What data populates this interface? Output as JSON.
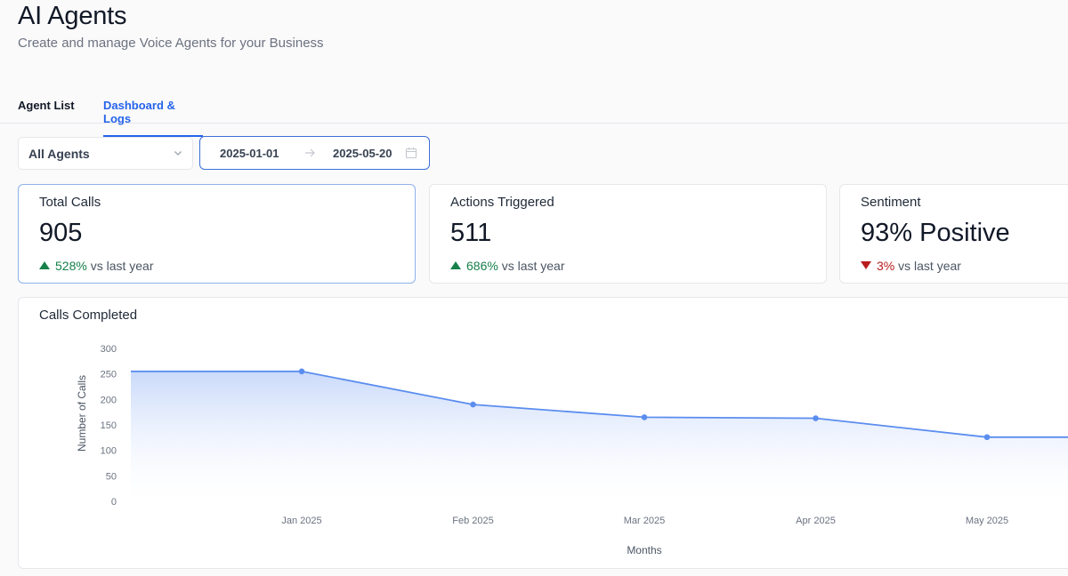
{
  "header": {
    "title": "AI Agents",
    "subtitle": "Create and manage Voice Agents for your Business"
  },
  "tabs": [
    {
      "label": "Agent List",
      "active": false
    },
    {
      "label": "Dashboard & Logs",
      "active": true
    }
  ],
  "filters": {
    "agent_select": "All Agents",
    "date_start": "2025-01-01",
    "date_end": "2025-05-20"
  },
  "cards": [
    {
      "title": "Total Calls",
      "value": "905",
      "pct": "528%",
      "suffix": "vs last year",
      "direction": "up"
    },
    {
      "title": "Actions Triggered",
      "value": "511",
      "pct": "686%",
      "suffix": "vs last year",
      "direction": "up"
    },
    {
      "title": "Sentiment",
      "value": "93% Positive",
      "pct": "3%",
      "suffix": "vs last year",
      "direction": "down"
    }
  ],
  "colors": {
    "accent": "#2563eb",
    "positive": "#16804a",
    "negative": "#b91c1c",
    "line": "#5b8def"
  },
  "chart_data": {
    "type": "area",
    "title": "Calls Completed",
    "xlabel": "Months",
    "ylabel": "Number of Calls",
    "categories": [
      "Jan 2025",
      "Feb 2025",
      "Mar 2025",
      "Apr 2025",
      "May 2025"
    ],
    "series": [
      {
        "values": [
          255,
          190,
          165,
          163,
          126
        ]
      }
    ],
    "ylim": [
      0,
      300
    ],
    "yticks": [
      0,
      50,
      100,
      150,
      200,
      250,
      300
    ],
    "legend": "none",
    "grid": false
  }
}
